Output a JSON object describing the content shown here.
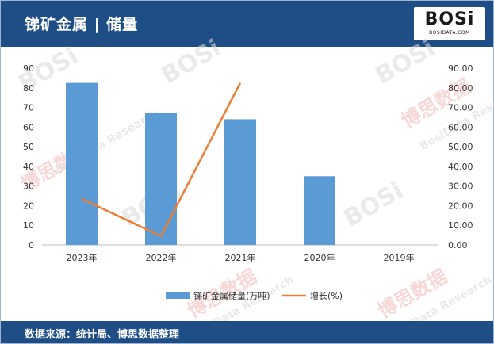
{
  "header": {
    "title": "锑矿金属 | 储量"
  },
  "logo": {
    "main": "BOSi",
    "sub": "BOSIDATA.COM"
  },
  "footer": {
    "source": "数据来源：统计局、博思数据整理"
  },
  "watermark": {
    "brand": "BOSi",
    "cn": "博思数据",
    "en": "BosiData Research"
  },
  "colors": {
    "header_bg": "#1f4e86",
    "bar": "#5b9bd5",
    "line": "#ed7d31"
  },
  "chart_data": {
    "type": "bar",
    "categories": [
      "2023年",
      "2022年",
      "2021年",
      "2020年",
      "2019年"
    ],
    "series": [
      {
        "name": "锑矿金属储量(万吨)",
        "type": "bar",
        "axis": "left",
        "values": [
          82.5,
          67,
          64,
          35,
          null
        ]
      },
      {
        "name": "增长(%)",
        "type": "line",
        "axis": "right",
        "values": [
          23.5,
          4.5,
          82.5,
          null,
          null
        ]
      }
    ],
    "y_left": {
      "min": 0,
      "max": 90,
      "ticks": [
        "0",
        "10",
        "20",
        "30",
        "40",
        "50",
        "60",
        "70",
        "80",
        "90"
      ]
    },
    "y_right": {
      "min": 0,
      "max": 90,
      "ticks": [
        "0.00",
        "10.00",
        "20.00",
        "30.00",
        "40.00",
        "50.00",
        "60.00",
        "70.00",
        "80.00",
        "90.00"
      ]
    },
    "grid": false,
    "legend": "bottom"
  }
}
